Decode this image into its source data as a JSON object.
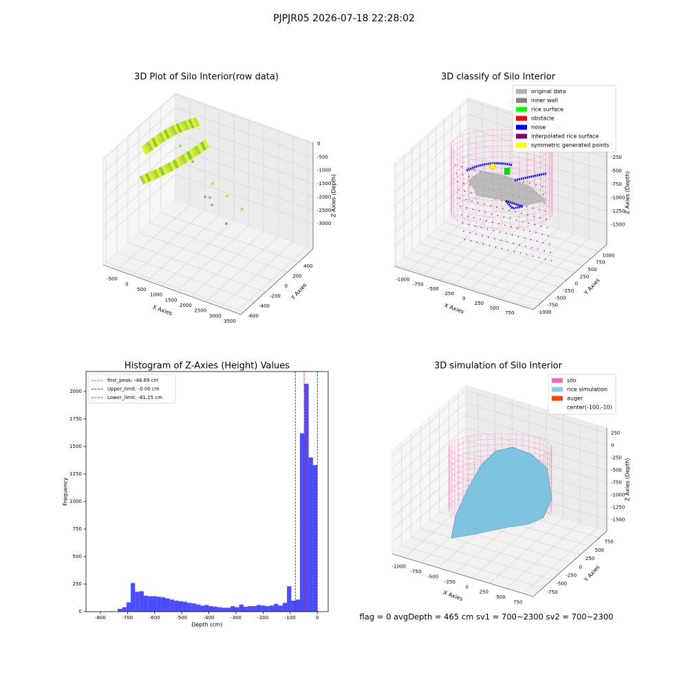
{
  "title": "PJPJR05 2026-07-18 22:28:02",
  "status": "flag = 0     avgDepth = 465 cm  sv1 = 700~2300  sv2 = 700~2300",
  "chart_data": [
    {
      "type": "scatter3d",
      "title": "3D Plot of Silo Interior(row data)",
      "xlabel": "X Axies",
      "ylabel": "Y Axies",
      "zlabel": "Z Axies (Depth)",
      "xlim": [
        -992,
        3686
      ],
      "ylim": [
        -650,
        665
      ],
      "zlim": [
        -3950,
        50
      ],
      "xticks": [
        -500,
        0,
        500,
        1000,
        1500,
        2000,
        2500,
        3000,
        3500
      ],
      "yticks": [
        -600,
        -400,
        -200,
        0,
        200,
        400
      ],
      "zticks": [
        -3000,
        -2500,
        -2000,
        -1500,
        -1000,
        -500,
        0
      ],
      "grid": true
    },
    {
      "type": "scatter3d",
      "title": "3D classify of Silo Interior",
      "xlabel": "X Axies",
      "ylabel": "Y Axies",
      "zlabel": "Z Axies (Depth)",
      "xlim": [
        -1230,
        1045
      ],
      "ylim": [
        -1050,
        1250
      ],
      "zlim": [
        -1866,
        58
      ],
      "xticks": [
        -1000,
        -750,
        -500,
        -250,
        0,
        250,
        500,
        750
      ],
      "yticks": [
        -1000,
        -750,
        -500,
        -250,
        0,
        250,
        500,
        750,
        1000
      ],
      "zticks": [
        -1500,
        -1250,
        -1000,
        -750,
        -500,
        -250,
        0
      ],
      "grid": true,
      "legend_loc": "upper right",
      "legend": [
        {
          "name": "original data",
          "color": "#b0b0b0"
        },
        {
          "name": "inner wall",
          "color": "#808080"
        },
        {
          "name": "rice surface",
          "color": "#00ff00"
        },
        {
          "name": "obstacle",
          "color": "#ff0000"
        },
        {
          "name": "noise",
          "color": "#0000ff"
        },
        {
          "name": "interpolated rice surface",
          "color": "#800080"
        },
        {
          "name": "symmetric generated points",
          "color": "#ffff00"
        }
      ]
    },
    {
      "type": "histogram",
      "title": "Histogram of Z-Axies (Height) Values",
      "xlabel": "Depth (cm)",
      "ylabel": "Frequency",
      "color": "#4c4cff",
      "bins": [
        -736,
        -720,
        -704,
        -688,
        -672,
        -656,
        -640,
        -624,
        -608,
        -592,
        -576,
        -560,
        -544,
        -528,
        -512,
        -496,
        -480,
        -464,
        -448,
        -432,
        -416,
        -400,
        -384,
        -368,
        -352,
        -336,
        -320,
        -304,
        -288,
        -272,
        -256,
        -240,
        -224,
        -208,
        -192,
        -176,
        -160,
        -144,
        -128,
        -112,
        -96,
        -80,
        -64,
        -48,
        -32,
        -16,
        0
      ],
      "counts": [
        25,
        40,
        85,
        260,
        180,
        185,
        145,
        140,
        140,
        135,
        130,
        120,
        110,
        100,
        95,
        90,
        80,
        75,
        65,
        55,
        60,
        50,
        45,
        40,
        35,
        35,
        50,
        40,
        65,
        45,
        50,
        50,
        60,
        55,
        50,
        55,
        70,
        55,
        80,
        230,
        100,
        110,
        1620,
        2070,
        1400,
        1330
      ],
      "xlim": [
        -853,
        40
      ],
      "ylim": [
        0,
        2181
      ],
      "xticks": [
        -800,
        -700,
        -600,
        -500,
        -400,
        -300,
        -200,
        -100,
        0
      ],
      "yticks": [
        0,
        250,
        500,
        750,
        1000,
        1250,
        1500,
        1750,
        2000
      ],
      "legend_loc": "upper left",
      "lines": [
        {
          "name": "first_peak: -48.69 cm",
          "value": -48.69,
          "color": "#ff0000"
        },
        {
          "name": "Upper_limit: -0.00 cm",
          "value": 0,
          "color": "#0000ff"
        },
        {
          "name": "Lower_limit: -81.15 cm",
          "value": -81.15,
          "color": "#0000ff"
        }
      ]
    },
    {
      "type": "surface3d",
      "title": "3D simulation of Silo Interior",
      "xlabel": "X Axies",
      "ylabel": "Y Axies",
      "zlabel": "Z Axies (Depth)",
      "xlim": [
        -1180,
        895
      ],
      "ylim": [
        -1000,
        950
      ],
      "zlim": [
        -1729,
        354
      ],
      "xticks": [
        -1000,
        -750,
        -500,
        -250,
        0,
        250,
        500,
        750
      ],
      "yticks": [
        -750,
        -500,
        -250,
        0,
        250,
        500,
        750
      ],
      "zticks": [
        -1500,
        -1250,
        -1000,
        -750,
        -500,
        -250,
        0,
        250
      ],
      "grid": true,
      "legend_loc": "upper right",
      "legend": [
        {
          "name": "silo",
          "color": "#ff69b4"
        },
        {
          "name": "rice simulation",
          "color": "#87ceeb"
        },
        {
          "name": "auger",
          "color": "#ff4500"
        },
        {
          "name": "center(-100,-10)"
        }
      ]
    }
  ]
}
